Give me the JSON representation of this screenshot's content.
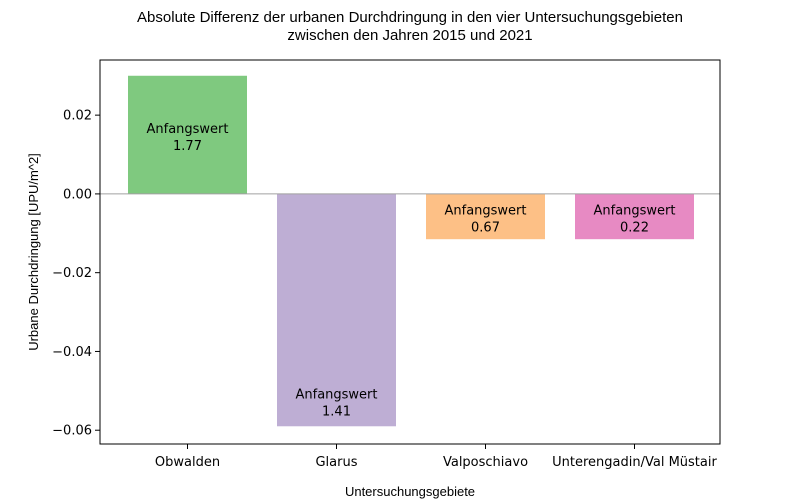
{
  "chart_data": {
    "type": "bar",
    "title_line1": "Absolute Differenz der urbanen Durchdringung in den vier Untersuchungsgebieten",
    "title_line2": "zwischen den Jahren 2015 und 2021",
    "xlabel": "Untersuchungsgebiete",
    "ylabel": "Urbane Durchdringung [UPU/m^2]",
    "ylim": [
      -0.0635,
      0.034
    ],
    "yticks": [
      0.02,
      0.0,
      -0.02,
      -0.04,
      -0.06
    ],
    "ytick_labels": [
      "0.02",
      "0.00",
      "−0.02",
      "−0.04",
      "−0.06"
    ],
    "categories": [
      "Obwalden",
      "Glarus",
      "Valposchiavo",
      "Unterengadin/Val Müstair"
    ],
    "values": [
      0.03,
      -0.059,
      -0.0115,
      -0.0115
    ],
    "colors": [
      "#7fc97f",
      "#beaed4",
      "#fdc086",
      "#e78ac3"
    ],
    "bar_labels": [
      {
        "line1": "Anfangswert",
        "line2": "1.77"
      },
      {
        "line1": "Anfangswert",
        "line2": "1.41"
      },
      {
        "line1": "Anfangswert",
        "line2": "0.67"
      },
      {
        "line1": "Anfangswert",
        "line2": "0.22"
      }
    ],
    "zero_line": true,
    "grid": false
  }
}
